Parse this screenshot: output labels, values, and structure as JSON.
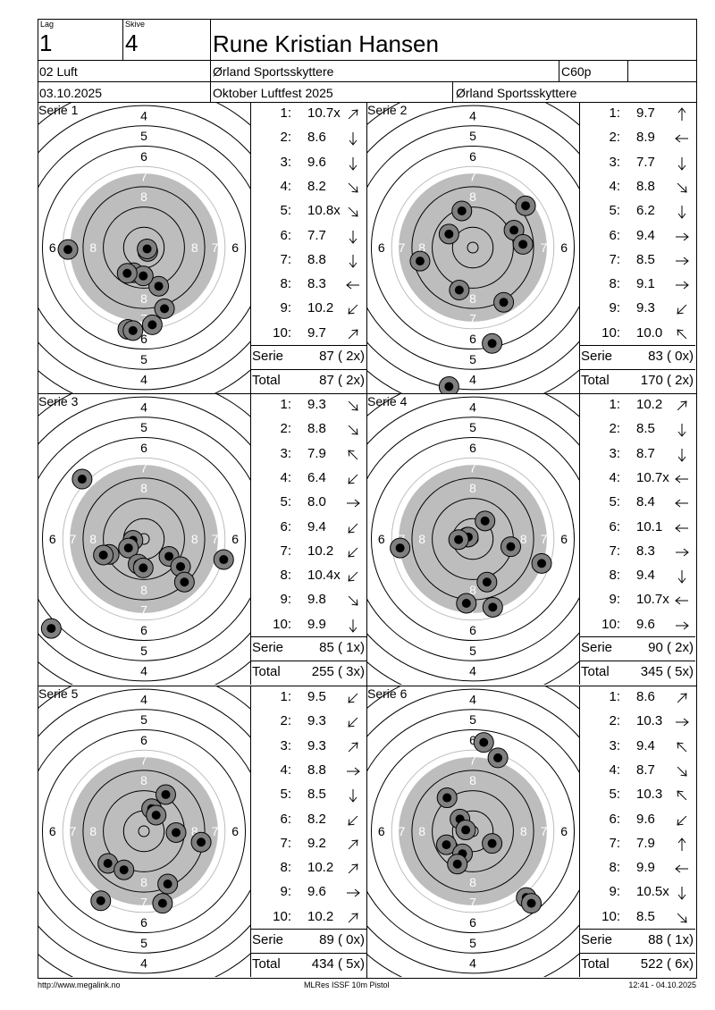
{
  "header": {
    "lag_label": "Lag",
    "lag": "1",
    "skive_label": "Skive",
    "skive": "4",
    "name": "Rune Kristian Hansen",
    "class": "02 Luft",
    "club": "Ørland Sportsskyttere",
    "code": "C60p",
    "date": "03.10.2025",
    "event": "Oktober Luftfest 2025",
    "club2": "Ørland Sportsskyttere"
  },
  "labels": {
    "serie": "Serie",
    "total": "Total"
  },
  "series": [
    {
      "title": "Serie 1",
      "shots": [
        {
          "n": "1:",
          "v": "10.7x",
          "dir": "ne"
        },
        {
          "n": "2:",
          "v": "8.6",
          "dir": "s"
        },
        {
          "n": "3:",
          "v": "9.6",
          "dir": "s"
        },
        {
          "n": "4:",
          "v": "8.2",
          "dir": "se"
        },
        {
          "n": "5:",
          "v": "10.8x",
          "dir": "se"
        },
        {
          "n": "6:",
          "v": "7.7",
          "dir": "s"
        },
        {
          "n": "7:",
          "v": "8.8",
          "dir": "s"
        },
        {
          "n": "8:",
          "v": "8.3",
          "dir": "w"
        },
        {
          "n": "9:",
          "v": "10.2",
          "dir": "sw"
        },
        {
          "n": "10:",
          "v": "9.7",
          "dir": "ne"
        }
      ],
      "serie": "87 ( 2x)",
      "total": "87 ( 2x)",
      "hits": [
        [
          0.6,
          -0.6
        ],
        [
          2.3,
          -6.0
        ],
        [
          -1.6,
          -3.9
        ],
        [
          -0.1,
          -4.4
        ],
        [
          0.5,
          -0.2
        ],
        [
          -11.8,
          -0.3
        ],
        [
          -2.6,
          -4.0
        ],
        [
          3.2,
          -9.5
        ],
        [
          1.3,
          -12.0
        ],
        [
          -2.5,
          -12.7
        ],
        [
          -1.7,
          -12.9
        ]
      ]
    },
    {
      "title": "Serie 2",
      "shots": [
        {
          "n": "1:",
          "v": "9.7",
          "dir": "n"
        },
        {
          "n": "2:",
          "v": "8.9",
          "dir": "w"
        },
        {
          "n": "3:",
          "v": "7.7",
          "dir": "s"
        },
        {
          "n": "4:",
          "v": "8.8",
          "dir": "se"
        },
        {
          "n": "5:",
          "v": "6.2",
          "dir": "s"
        },
        {
          "n": "6:",
          "v": "9.4",
          "dir": "e"
        },
        {
          "n": "7:",
          "v": "8.5",
          "dir": "e"
        },
        {
          "n": "8:",
          "v": "9.1",
          "dir": "e"
        },
        {
          "n": "9:",
          "v": "9.3",
          "dir": "sw"
        },
        {
          "n": "10:",
          "v": "10.0",
          "dir": "nw"
        }
      ],
      "serie": "83 ( 0x)",
      "total": "170 ( 2x)",
      "hits": [
        [
          -1.7,
          5.7
        ],
        [
          -3.7,
          2.1
        ],
        [
          8.2,
          6.5
        ],
        [
          6.4,
          2.7
        ],
        [
          7.8,
          0.5
        ],
        [
          -8.2,
          -2.1
        ],
        [
          -2.1,
          -6.6
        ],
        [
          4.8,
          -8.5
        ],
        [
          3.0,
          -14.9
        ],
        [
          -3.7,
          -21.6
        ]
      ]
    },
    {
      "title": "Serie 3",
      "shots": [
        {
          "n": "1:",
          "v": "9.3",
          "dir": "se"
        },
        {
          "n": "2:",
          "v": "8.8",
          "dir": "se"
        },
        {
          "n": "3:",
          "v": "7.9",
          "dir": "nw"
        },
        {
          "n": "4:",
          "v": "6.4",
          "dir": "sw"
        },
        {
          "n": "5:",
          "v": "8.0",
          "dir": "e"
        },
        {
          "n": "6:",
          "v": "9.4",
          "dir": "sw"
        },
        {
          "n": "7:",
          "v": "10.2",
          "dir": "sw"
        },
        {
          "n": "8:",
          "v": "10.4x",
          "dir": "sw"
        },
        {
          "n": "9:",
          "v": "9.8",
          "dir": "se"
        },
        {
          "n": "10:",
          "v": "9.9",
          "dir": "s"
        }
      ],
      "serie": "85 ( 1x)",
      "total": "255 ( 3x)",
      "hits": [
        [
          -9.6,
          9.3
        ],
        [
          -1.7,
          -0.2
        ],
        [
          -2.4,
          -1.4
        ],
        [
          -5.4,
          -2.4
        ],
        [
          -0.9,
          -3.9
        ],
        [
          -0.1,
          -4.5
        ],
        [
          -6.3,
          -2.5
        ],
        [
          3.9,
          -2.7
        ],
        [
          5.7,
          -4.3
        ],
        [
          6.3,
          -6.7
        ],
        [
          12.4,
          -3.2
        ],
        [
          -14.4,
          -13.9
        ]
      ]
    },
    {
      "title": "Serie 4",
      "shots": [
        {
          "n": "1:",
          "v": "10.2",
          "dir": "ne"
        },
        {
          "n": "2:",
          "v": "8.5",
          "dir": "s"
        },
        {
          "n": "3:",
          "v": "8.7",
          "dir": "s"
        },
        {
          "n": "4:",
          "v": "10.7x",
          "dir": "w"
        },
        {
          "n": "5:",
          "v": "8.4",
          "dir": "w"
        },
        {
          "n": "6:",
          "v": "10.1",
          "dir": "w"
        },
        {
          "n": "7:",
          "v": "8.3",
          "dir": "e"
        },
        {
          "n": "8:",
          "v": "9.4",
          "dir": "s"
        },
        {
          "n": "9:",
          "v": "10.7x",
          "dir": "w"
        },
        {
          "n": "10:",
          "v": "9.6",
          "dir": "e"
        }
      ],
      "serie": "90 ( 2x)",
      "total": "345 ( 5x)",
      "hits": [
        [
          1.9,
          2.8
        ],
        [
          -0.8,
          0.3
        ],
        [
          -0.7,
          0.3
        ],
        [
          -2.2,
          -0.1
        ],
        [
          5.9,
          -1.2
        ],
        [
          -11.3,
          -1.4
        ],
        [
          10.7,
          -3.8
        ],
        [
          2.2,
          -6.7
        ],
        [
          -1.0,
          -10.0
        ],
        [
          3.1,
          -10.6
        ]
      ]
    },
    {
      "title": "Serie 5",
      "shots": [
        {
          "n": "1:",
          "v": "9.5",
          "dir": "sw"
        },
        {
          "n": "2:",
          "v": "9.3",
          "dir": "sw"
        },
        {
          "n": "3:",
          "v": "9.3",
          "dir": "ne"
        },
        {
          "n": "4:",
          "v": "8.8",
          "dir": "e"
        },
        {
          "n": "5:",
          "v": "8.5",
          "dir": "s"
        },
        {
          "n": "6:",
          "v": "8.2",
          "dir": "sw"
        },
        {
          "n": "7:",
          "v": "9.2",
          "dir": "ne"
        },
        {
          "n": "8:",
          "v": "10.2",
          "dir": "ne"
        },
        {
          "n": "9:",
          "v": "9.6",
          "dir": "e"
        },
        {
          "n": "10:",
          "v": "10.2",
          "dir": "ne"
        }
      ],
      "serie": "89 ( 0x)",
      "total": "434 ( 5x)",
      "hits": [
        [
          3.4,
          5.7
        ],
        [
          1.2,
          3.5
        ],
        [
          1.9,
          2.5
        ],
        [
          5.0,
          -0.2
        ],
        [
          8.9,
          -1.7
        ],
        [
          -5.6,
          -5.0
        ],
        [
          -3.1,
          -6.0
        ],
        [
          3.7,
          -8.2
        ],
        [
          -6.7,
          -10.8
        ],
        [
          2.9,
          -11.2
        ]
      ]
    },
    {
      "title": "Serie 6",
      "shots": [
        {
          "n": "1:",
          "v": "8.6",
          "dir": "ne"
        },
        {
          "n": "2:",
          "v": "10.3",
          "dir": "e"
        },
        {
          "n": "3:",
          "v": "9.4",
          "dir": "nw"
        },
        {
          "n": "4:",
          "v": "8.7",
          "dir": "se"
        },
        {
          "n": "5:",
          "v": "10.3",
          "dir": "nw"
        },
        {
          "n": "6:",
          "v": "9.6",
          "dir": "sw"
        },
        {
          "n": "7:",
          "v": "7.9",
          "dir": "n"
        },
        {
          "n": "8:",
          "v": "9.9",
          "dir": "w"
        },
        {
          "n": "9:",
          "v": "10.5x",
          "dir": "s"
        },
        {
          "n": "10:",
          "v": "8.5",
          "dir": "se"
        }
      ],
      "serie": "88 ( 1x)",
      "total": "522 ( 6x)",
      "hits": [
        [
          1.7,
          13.8
        ],
        [
          3.9,
          11.4
        ],
        [
          -4.0,
          5.2
        ],
        [
          -2.0,
          1.9
        ],
        [
          -1.1,
          0.2
        ],
        [
          3.0,
          -1.9
        ],
        [
          -4.1,
          -2.1
        ],
        [
          -1.6,
          -3.5
        ],
        [
          -2.4,
          -5.1
        ],
        [
          8.3,
          -10.3
        ],
        [
          9.1,
          -11.2
        ]
      ]
    }
  ],
  "footer": {
    "left": "http://www.megalink.no",
    "center": "MLRes ISSF 10m Pistol",
    "right": "12:41 - 04.10.2025"
  }
}
